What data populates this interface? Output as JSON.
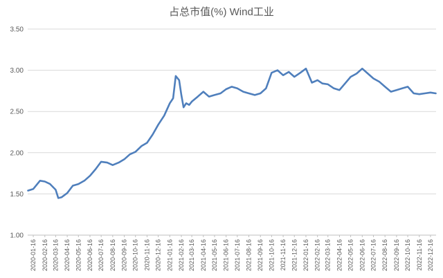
{
  "chart_data": {
    "type": "line",
    "title": "占总市值(%) Wind工业",
    "xlabel": "",
    "ylabel": "",
    "ylim": [
      1.0,
      3.5
    ],
    "yticks": [
      "1.00",
      "1.50",
      "2.00",
      "2.50",
      "3.00",
      "3.50"
    ],
    "xticks": [
      "2020-01-16",
      "2020-02-16",
      "2020-03-16",
      "2020-04-16",
      "2020-05-16",
      "2020-06-16",
      "2020-07-16",
      "2020-08-16",
      "2020-09-16",
      "2020-10-16",
      "2020-11-16",
      "2020-12-16",
      "2021-01-16",
      "2021-02-16",
      "2021-03-16",
      "2021-04-16",
      "2021-05-16",
      "2021-06-16",
      "2021-07-16",
      "2021-08-16",
      "2021-09-16",
      "2021-10-16",
      "2021-11-16",
      "2021-12-16",
      "2022-01-16",
      "2022-02-16",
      "2022-03-16",
      "2022-04-16",
      "2022-05-16",
      "2022-06-16",
      "2022-07-16",
      "2022-08-16",
      "2022-09-16",
      "2022-10-16",
      "2022-11-16",
      "2022-12-16"
    ],
    "grid": true,
    "legend": "none",
    "line_color": "#4f7fbc",
    "series": [
      {
        "x": [
          "2020-01-02",
          "2020-01-16",
          "2020-02-03",
          "2020-02-16",
          "2020-03-01",
          "2020-03-16",
          "2020-03-23",
          "2020-04-01",
          "2020-04-16",
          "2020-05-01",
          "2020-05-16",
          "2020-06-01",
          "2020-06-16",
          "2020-07-01",
          "2020-07-16",
          "2020-08-01",
          "2020-08-16",
          "2020-09-01",
          "2020-09-16",
          "2020-10-01",
          "2020-10-16",
          "2020-11-01",
          "2020-11-16",
          "2020-12-01",
          "2020-12-16",
          "2021-01-01",
          "2021-01-16",
          "2021-01-25",
          "2021-02-01",
          "2021-02-10",
          "2021-02-16",
          "2021-02-22",
          "2021-03-01",
          "2021-03-09",
          "2021-03-16",
          "2021-04-01",
          "2021-04-16",
          "2021-05-01",
          "2021-05-16",
          "2021-06-01",
          "2021-06-16",
          "2021-07-01",
          "2021-07-16",
          "2021-08-01",
          "2021-08-16",
          "2021-09-01",
          "2021-09-16",
          "2021-10-01",
          "2021-10-16",
          "2021-11-01",
          "2021-11-16",
          "2021-12-01",
          "2021-12-16",
          "2022-01-01",
          "2022-01-16",
          "2022-02-01",
          "2022-02-16",
          "2022-03-01",
          "2022-03-16",
          "2022-04-01",
          "2022-04-16",
          "2022-05-01",
          "2022-05-16",
          "2022-06-01",
          "2022-06-16",
          "2022-07-01",
          "2022-07-16",
          "2022-08-01",
          "2022-08-16",
          "2022-09-01",
          "2022-09-16",
          "2022-10-01",
          "2022-10-16",
          "2022-11-01",
          "2022-11-16",
          "2022-12-01",
          "2022-12-16",
          "2022-12-30"
        ],
        "values": [
          1.54,
          1.56,
          1.66,
          1.65,
          1.62,
          1.55,
          1.45,
          1.46,
          1.51,
          1.6,
          1.62,
          1.66,
          1.72,
          1.8,
          1.89,
          1.88,
          1.85,
          1.88,
          1.92,
          1.98,
          2.01,
          2.08,
          2.12,
          2.22,
          2.34,
          2.45,
          2.6,
          2.66,
          2.93,
          2.88,
          2.7,
          2.55,
          2.6,
          2.58,
          2.62,
          2.68,
          2.74,
          2.68,
          2.7,
          2.72,
          2.77,
          2.8,
          2.78,
          2.74,
          2.72,
          2.7,
          2.72,
          2.78,
          2.97,
          3.0,
          2.94,
          2.98,
          2.92,
          2.97,
          3.02,
          2.85,
          2.88,
          2.84,
          2.83,
          2.78,
          2.76,
          2.84,
          2.92,
          2.96,
          3.02,
          2.96,
          2.9,
          2.86,
          2.8,
          2.74,
          2.76,
          2.78,
          2.8,
          2.72,
          2.71,
          2.72,
          2.73,
          2.72
        ]
      }
    ]
  }
}
